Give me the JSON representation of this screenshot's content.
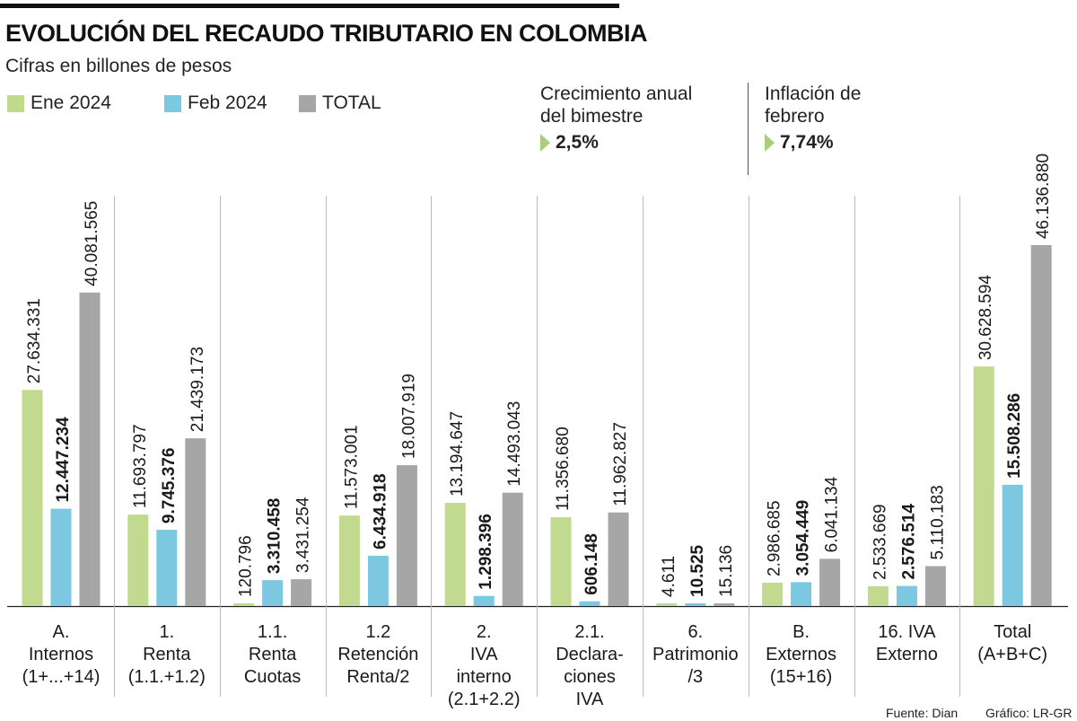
{
  "header": {
    "title": "EVOLUCIÓN DEL RECAUDO TRIBUTARIO EN COLOMBIA",
    "subtitle": "Cifras en billones de pesos"
  },
  "kpis": [
    {
      "label_line1": "Crecimiento anual",
      "label_line2": "del bimestre",
      "value": "2,5%"
    },
    {
      "label_line1": "Inflación de",
      "label_line2": "febrero",
      "value": "7,74%"
    }
  ],
  "footer": {
    "source": "Fuente: Dian",
    "credit": "Gráfico: LR-GR"
  },
  "colors": {
    "ene": "#c2da8f",
    "feb": "#7cc8e0",
    "total": "#a6a6a6",
    "divider": "#bbbbbb",
    "axis": "#222222",
    "accent": "#a9cd7d"
  },
  "chart_data": {
    "type": "bar",
    "title": "EVOLUCIÓN DEL RECAUDO TRIBUTARIO EN COLOMBIA",
    "subtitle": "Cifras en billones de pesos",
    "legend_position": "top-left",
    "grid": false,
    "ylim": [
      0,
      46136880
    ],
    "categories": [
      {
        "lines": [
          "A.",
          "Internos",
          "(1+...+14)"
        ]
      },
      {
        "lines": [
          "1.",
          "Renta",
          "(1.1.+1.2)"
        ]
      },
      {
        "lines": [
          "1.1.",
          "Renta",
          "Cuotas"
        ]
      },
      {
        "lines": [
          "1.2",
          "Retención",
          "Renta/2"
        ]
      },
      {
        "lines": [
          "2.",
          "IVA",
          "interno",
          "(2.1+2.2)"
        ]
      },
      {
        "lines": [
          "2.1.",
          "Declara-",
          "ciones",
          "IVA"
        ]
      },
      {
        "lines": [
          "6.",
          "Patrimonio",
          "/3"
        ]
      },
      {
        "lines": [
          "B.",
          "Externos",
          "(15+16)"
        ]
      },
      {
        "lines": [
          "16. IVA",
          "Externo"
        ]
      },
      {
        "lines": [
          "Total",
          "(A+B+C)"
        ]
      }
    ],
    "series": [
      {
        "name": "Ene 2024",
        "key": "ene",
        "bold": false,
        "values": [
          27634331,
          11693797,
          120796,
          11573001,
          13194647,
          11356680,
          4611,
          2986685,
          2533669,
          30628594
        ],
        "labels": [
          "27.634.331",
          "11.693.797",
          "120.796",
          "11.573.001",
          "13.194.647",
          "11.356.680",
          "4.611",
          "2.986.685",
          "2.533.669",
          "30.628.594"
        ]
      },
      {
        "name": "Feb 2024",
        "key": "feb",
        "bold": true,
        "values": [
          12447234,
          9745376,
          3310458,
          6434918,
          1298396,
          606148,
          10525,
          3054449,
          2576514,
          15508286
        ],
        "labels": [
          "12.447.234",
          "9.745.376",
          "3.310.458",
          "6.434.918",
          "1.298.396",
          "606.148",
          "10.525",
          "3.054.449",
          "2.576.514",
          "15.508.286"
        ]
      },
      {
        "name": "TOTAL",
        "key": "total",
        "bold": false,
        "values": [
          40081565,
          21439173,
          3431254,
          18007919,
          14493043,
          11962827,
          15136,
          6041134,
          5110183,
          46136880
        ],
        "labels": [
          "40.081.565",
          "21.439.173",
          "3.431.254",
          "18.007.919",
          "14.493.043",
          "11.962.827",
          "15.136",
          "6.041.134",
          "5.110.183",
          "46.136.880"
        ]
      }
    ]
  }
}
